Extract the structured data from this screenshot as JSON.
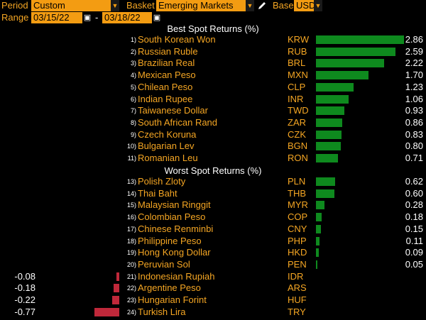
{
  "toolbar": {
    "period_label": "Period",
    "period_value": "Custom",
    "basket_label": "Basket",
    "basket_value": "Emerging Markets",
    "base_label": "Base",
    "base_value": "USD",
    "range_label": "Range",
    "start_date": "03/15/22",
    "end_date": "03/18/22",
    "dash": "-"
  },
  "best_title": "Best Spot Returns (%)",
  "worst_title": "Worst Spot Returns (%)",
  "colors": {
    "positive": "#0e8a1e",
    "negative": "#c0283a",
    "accent": "#f39c12"
  },
  "best": [
    {
      "rank": "1)",
      "name": "South Korean Won",
      "code": "KRW",
      "value": 2.86,
      "label": "2.86"
    },
    {
      "rank": "2)",
      "name": "Russian Ruble",
      "code": "RUB",
      "value": 2.59,
      "label": "2.59"
    },
    {
      "rank": "3)",
      "name": "Brazilian Real",
      "code": "BRL",
      "value": 2.22,
      "label": "2.22"
    },
    {
      "rank": "4)",
      "name": "Mexican Peso",
      "code": "MXN",
      "value": 1.7,
      "label": "1.70"
    },
    {
      "rank": "5)",
      "name": "Chilean Peso",
      "code": "CLP",
      "value": 1.23,
      "label": "1.23"
    },
    {
      "rank": "6)",
      "name": "Indian Rupee",
      "code": "INR",
      "value": 1.06,
      "label": "1.06"
    },
    {
      "rank": "7)",
      "name": "Taiwanese Dollar",
      "code": "TWD",
      "value": 0.93,
      "label": "0.93"
    },
    {
      "rank": "8)",
      "name": "South African Rand",
      "code": "ZAR",
      "value": 0.86,
      "label": "0.86"
    },
    {
      "rank": "9)",
      "name": "Czech Koruna",
      "code": "CZK",
      "value": 0.83,
      "label": "0.83"
    },
    {
      "rank": "10)",
      "name": "Bulgarian Lev",
      "code": "BGN",
      "value": 0.8,
      "label": "0.80"
    },
    {
      "rank": "11)",
      "name": "Romanian Leu",
      "code": "RON",
      "value": 0.71,
      "label": "0.71"
    }
  ],
  "worst": [
    {
      "rank": "13)",
      "name": "Polish Zloty",
      "code": "PLN",
      "value": 0.62,
      "label": "0.62"
    },
    {
      "rank": "14)",
      "name": "Thai Baht",
      "code": "THB",
      "value": 0.6,
      "label": "0.60"
    },
    {
      "rank": "15)",
      "name": "Malaysian Ringgit",
      "code": "MYR",
      "value": 0.28,
      "label": "0.28"
    },
    {
      "rank": "16)",
      "name": "Colombian Peso",
      "code": "COP",
      "value": 0.18,
      "label": "0.18"
    },
    {
      "rank": "17)",
      "name": "Chinese Renminbi",
      "code": "CNY",
      "value": 0.15,
      "label": "0.15"
    },
    {
      "rank": "18)",
      "name": "Philippine Peso",
      "code": "PHP",
      "value": 0.11,
      "label": "0.11"
    },
    {
      "rank": "19)",
      "name": "Hong Kong Dollar",
      "code": "HKD",
      "value": 0.09,
      "label": "0.09"
    },
    {
      "rank": "20)",
      "name": "Peruvian Sol",
      "code": "PEN",
      "value": 0.05,
      "label": "0.05"
    },
    {
      "rank": "21)",
      "name": "Indonesian Rupiah",
      "code": "IDR",
      "value": -0.08,
      "label": "-0.08"
    },
    {
      "rank": "22)",
      "name": "Argentine Peso",
      "code": "ARS",
      "value": -0.18,
      "label": "-0.18"
    },
    {
      "rank": "23)",
      "name": "Hungarian Forint",
      "code": "HUF",
      "value": -0.22,
      "label": "-0.22"
    },
    {
      "rank": "24)",
      "name": "Turkish Lira",
      "code": "TRY",
      "value": -0.77,
      "label": "-0.77"
    }
  ]
}
